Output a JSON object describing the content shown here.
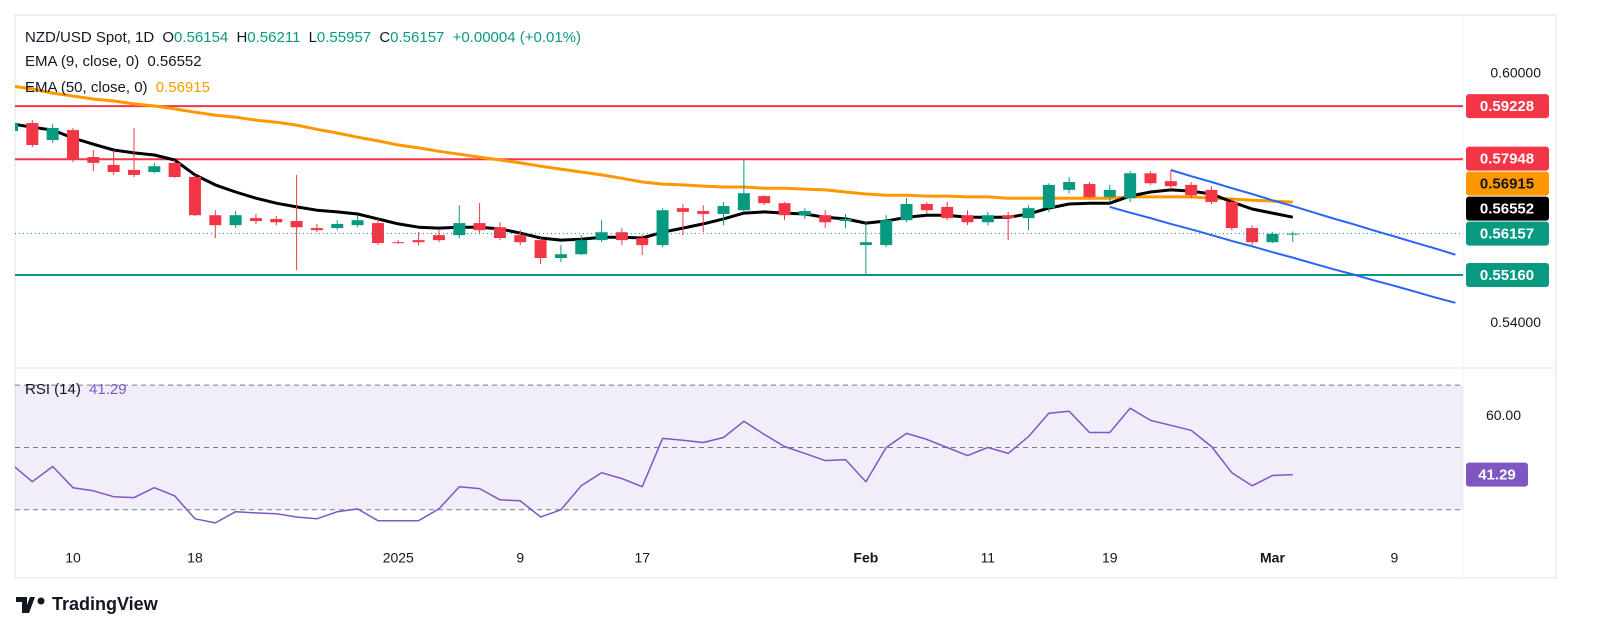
{
  "brand": "TradingView",
  "chart_data": [
    {
      "type": "candlestick",
      "title": "NZD/USD Spot, 1D",
      "ohlc_labels": [
        "O",
        "H",
        "L",
        "C"
      ],
      "change": "+0.00004 (+0.01%)",
      "up_color": "#089981",
      "down_color": "#f23645",
      "ylim": [
        0.5292,
        0.61422
      ],
      "yticks": [
        {
          "value": 0.6,
          "label": "0.60000"
        },
        {
          "value": 0.54,
          "label": "0.54000"
        }
      ],
      "categories": [
        null,
        null,
        null,
        "10",
        null,
        null,
        null,
        null,
        null,
        "18",
        null,
        null,
        null,
        null,
        null,
        null,
        null,
        null,
        null,
        "2025",
        null,
        null,
        null,
        null,
        null,
        "9",
        null,
        null,
        null,
        null,
        null,
        "17",
        null,
        null,
        null,
        null,
        null,
        null,
        null,
        null,
        null,
        null,
        "Feb",
        null,
        null,
        null,
        null,
        null,
        "11",
        null,
        null,
        null,
        null,
        null,
        "19",
        null,
        null,
        null,
        null,
        null,
        null,
        null,
        "Mar",
        null,
        null,
        null,
        null,
        null,
        "9",
        null,
        null,
        null
      ],
      "open": [
        0.5863,
        0.5882,
        0.5841,
        0.5865,
        0.58,
        0.5781,
        0.5769,
        0.5764,
        0.5786,
        0.5752,
        0.566,
        0.5636,
        0.5653,
        0.5651,
        0.5646,
        0.5629,
        0.5629,
        0.5636,
        0.5641,
        0.5595,
        0.56,
        0.5612,
        0.5612,
        0.5641,
        0.5631,
        0.5612,
        0.56,
        0.5557,
        0.5566,
        0.56,
        0.5619,
        0.5605,
        0.5588,
        0.5677,
        0.567,
        0.5663,
        0.5672,
        0.5706,
        0.5689,
        0.566,
        0.566,
        0.5646,
        0.5588,
        0.5588,
        0.5648,
        0.5687,
        0.568,
        0.566,
        0.5643,
        0.566,
        0.5653,
        0.5677,
        0.5721,
        0.5735,
        0.5704,
        0.5701,
        0.5761,
        0.5742,
        0.5733,
        0.5721,
        0.5692,
        0.5629,
        0.5595,
        0.56154,
        null,
        null,
        null,
        null,
        null,
        null,
        null,
        null
      ],
      "high": [
        0.5889,
        0.5889,
        0.588,
        0.587,
        0.5817,
        0.5817,
        0.587,
        0.5786,
        0.5793,
        0.5757,
        0.5672,
        0.567,
        0.5663,
        0.5658,
        0.5757,
        0.5639,
        0.5648,
        0.566,
        0.5651,
        0.56,
        0.5619,
        0.5624,
        0.5684,
        0.5689,
        0.5643,
        0.5624,
        0.5605,
        0.5588,
        0.5612,
        0.5648,
        0.5629,
        0.5614,
        0.5677,
        0.5687,
        0.5684,
        0.5692,
        0.5793,
        0.5708,
        0.5692,
        0.5677,
        0.5672,
        0.5663,
        0.5643,
        0.566,
        0.5701,
        0.5692,
        0.5692,
        0.5672,
        0.5668,
        0.5668,
        0.5684,
        0.5737,
        0.5752,
        0.574,
        0.5733,
        0.5766,
        0.5766,
        0.5769,
        0.574,
        0.573,
        0.5701,
        0.5636,
        0.5619,
        0.56211,
        null,
        null,
        null,
        null,
        null,
        null,
        null,
        null
      ],
      "low": [
        0.5858,
        0.5824,
        0.5834,
        0.5788,
        0.5766,
        0.5757,
        0.5752,
        0.5761,
        0.575,
        0.5658,
        0.5605,
        0.5629,
        0.5639,
        0.5636,
        0.5528,
        0.5619,
        0.5624,
        0.5631,
        0.5588,
        0.5591,
        0.5588,
        0.5595,
        0.5605,
        0.5614,
        0.56,
        0.5588,
        0.5542,
        0.5547,
        0.5564,
        0.5595,
        0.5588,
        0.5564,
        0.5583,
        0.5612,
        0.5619,
        0.5636,
        0.5668,
        0.5684,
        0.5648,
        0.5651,
        0.5629,
        0.5629,
        0.5518,
        0.5583,
        0.5643,
        0.5663,
        0.5648,
        0.5636,
        0.5636,
        0.56,
        0.5624,
        0.5668,
        0.5713,
        0.5701,
        0.5692,
        0.5692,
        0.5733,
        0.5721,
        0.5701,
        0.5687,
        0.5624,
        0.5588,
        0.5593,
        0.55957,
        null,
        null,
        null,
        null,
        null,
        null,
        null,
        null
      ],
      "close": [
        0.5882,
        0.5829,
        0.587,
        0.5793,
        0.5786,
        0.5764,
        0.5757,
        0.5778,
        0.5752,
        0.566,
        0.5636,
        0.566,
        0.5646,
        0.5643,
        0.5631,
        0.5624,
        0.5639,
        0.5648,
        0.5593,
        0.5593,
        0.5595,
        0.56,
        0.5641,
        0.5624,
        0.5605,
        0.5595,
        0.5557,
        0.5566,
        0.56,
        0.5619,
        0.56,
        0.5588,
        0.5672,
        0.5668,
        0.5663,
        0.5682,
        0.5713,
        0.5689,
        0.566,
        0.567,
        0.5643,
        0.5651,
        0.5595,
        0.5648,
        0.5687,
        0.5672,
        0.5653,
        0.5643,
        0.566,
        0.5653,
        0.5677,
        0.5733,
        0.574,
        0.5704,
        0.5721,
        0.5761,
        0.5737,
        0.573,
        0.5708,
        0.5692,
        0.5629,
        0.5595,
        0.5615,
        0.56157,
        null,
        null,
        null,
        null,
        null,
        null,
        null,
        null
      ],
      "series": [
        {
          "name": "EMA (9, close, 0)",
          "color": "#000000",
          "values": [
            0.588,
            0.5872,
            0.5865,
            0.5846,
            0.5831,
            0.5817,
            0.581,
            0.5805,
            0.5793,
            0.5757,
            0.5733,
            0.5716,
            0.5701,
            0.5689,
            0.568,
            0.5672,
            0.5668,
            0.5663,
            0.5651,
            0.5639,
            0.5631,
            0.5629,
            0.5631,
            0.5631,
            0.5627,
            0.5617,
            0.5605,
            0.56,
            0.5602,
            0.5607,
            0.5607,
            0.5605,
            0.5619,
            0.5629,
            0.5639,
            0.5651,
            0.5665,
            0.5668,
            0.5665,
            0.5663,
            0.5655,
            0.5651,
            0.5641,
            0.5646,
            0.5655,
            0.566,
            0.566,
            0.5655,
            0.5655,
            0.5655,
            0.5663,
            0.5677,
            0.5687,
            0.5689,
            0.5689,
            0.5706,
            0.5716,
            0.5721,
            0.5718,
            0.5711,
            0.5692,
            0.5675,
            0.5665,
            0.56552,
            null,
            null,
            null,
            null,
            null,
            null,
            null,
            null
          ]
        },
        {
          "name": "EMA (50, close, 0)",
          "color": "#ff9800",
          "values": [
            0.5971,
            0.5964,
            0.5954,
            0.5947,
            0.594,
            0.5935,
            0.5928,
            0.5923,
            0.5916,
            0.5908,
            0.5901,
            0.5896,
            0.5889,
            0.5884,
            0.5877,
            0.5867,
            0.5858,
            0.5848,
            0.5839,
            0.5829,
            0.5822,
            0.5814,
            0.5807,
            0.58,
            0.5793,
            0.5786,
            0.5778,
            0.5771,
            0.5764,
            0.5757,
            0.5749,
            0.574,
            0.5735,
            0.5733,
            0.573,
            0.5728,
            0.5728,
            0.5725,
            0.5725,
            0.5723,
            0.5721,
            0.5716,
            0.5711,
            0.5708,
            0.5708,
            0.5706,
            0.5706,
            0.5704,
            0.5704,
            0.5701,
            0.5701,
            0.5701,
            0.5701,
            0.5701,
            0.5701,
            0.5704,
            0.5704,
            0.5704,
            0.5704,
            0.5701,
            0.5699,
            0.5696,
            0.5694,
            0.56915,
            null,
            null,
            null,
            null,
            null,
            null,
            null,
            null
          ]
        }
      ],
      "channel": [
        {
          "color": "#2962ff",
          "values": [
            null,
            null,
            null,
            null,
            null,
            null,
            null,
            null,
            null,
            null,
            null,
            null,
            null,
            null,
            null,
            null,
            null,
            null,
            null,
            null,
            null,
            null,
            null,
            null,
            null,
            null,
            null,
            null,
            null,
            null,
            null,
            null,
            null,
            null,
            null,
            null,
            null,
            null,
            null,
            null,
            null,
            null,
            null,
            null,
            null,
            null,
            null,
            null,
            null,
            null,
            null,
            null,
            null,
            null,
            null,
            null,
            null,
            0.5769,
            0.5754,
            0.574,
            0.5725,
            0.5711,
            0.5696,
            0.5682,
            0.5667,
            0.5652,
            0.5638,
            0.5623,
            0.5609,
            0.5594,
            0.558,
            0.5565
          ]
        },
        {
          "color": "#2962ff",
          "values": [
            null,
            null,
            null,
            null,
            null,
            null,
            null,
            null,
            null,
            null,
            null,
            null,
            null,
            null,
            null,
            null,
            null,
            null,
            null,
            null,
            null,
            null,
            null,
            null,
            null,
            null,
            null,
            null,
            null,
            null,
            null,
            null,
            null,
            null,
            null,
            null,
            null,
            null,
            null,
            null,
            null,
            null,
            null,
            null,
            null,
            null,
            null,
            null,
            null,
            null,
            null,
            null,
            null,
            null,
            0.568,
            0.5666,
            0.5653,
            0.5639,
            0.5626,
            0.5612,
            0.5598,
            0.5585,
            0.5571,
            0.5558,
            0.5544,
            0.553,
            0.5517,
            0.5503,
            0.549,
            0.5476,
            0.5462,
            0.5449
          ]
        }
      ],
      "levels": [
        {
          "value": 0.59228,
          "color": "#f23645"
        },
        {
          "value": 0.57948,
          "color": "#f23645"
        },
        {
          "value": 0.5516,
          "label": "0.55160",
          "color": "#089981"
        }
      ]
    },
    {
      "type": "line",
      "title": "RSI (14)",
      "ylim": [
        18.7,
        75.5
      ],
      "yticks": [
        {
          "value": 60,
          "label": "60.00"
        }
      ],
      "band": [
        30,
        70
      ],
      "band_color": "#7e57c2",
      "levels": [
        70,
        50,
        30
      ],
      "series": [
        {
          "name": "RSI (14)",
          "color": "#7e57c2",
          "values": [
            44.5,
            39.0,
            43.9,
            37.1,
            36.1,
            34.2,
            33.9,
            37.1,
            34.5,
            27.1,
            25.8,
            29.4,
            29.0,
            28.7,
            27.7,
            27.1,
            29.4,
            30.3,
            26.5,
            26.5,
            26.5,
            30.3,
            37.4,
            36.8,
            33.2,
            32.9,
            27.7,
            30.0,
            37.7,
            41.9,
            40.0,
            37.4,
            52.9,
            52.3,
            51.6,
            53.2,
            58.4,
            54.2,
            50.3,
            48.1,
            45.8,
            46.1,
            39.0,
            50.0,
            54.5,
            52.6,
            50.0,
            47.4,
            50.0,
            48.1,
            53.5,
            61.0,
            61.6,
            54.8,
            54.8,
            62.6,
            58.7,
            57.1,
            55.5,
            50.3,
            41.9,
            37.7,
            41.0,
            41.29,
            null,
            null,
            null,
            null,
            null,
            null,
            null,
            null
          ]
        }
      ]
    }
  ]
}
